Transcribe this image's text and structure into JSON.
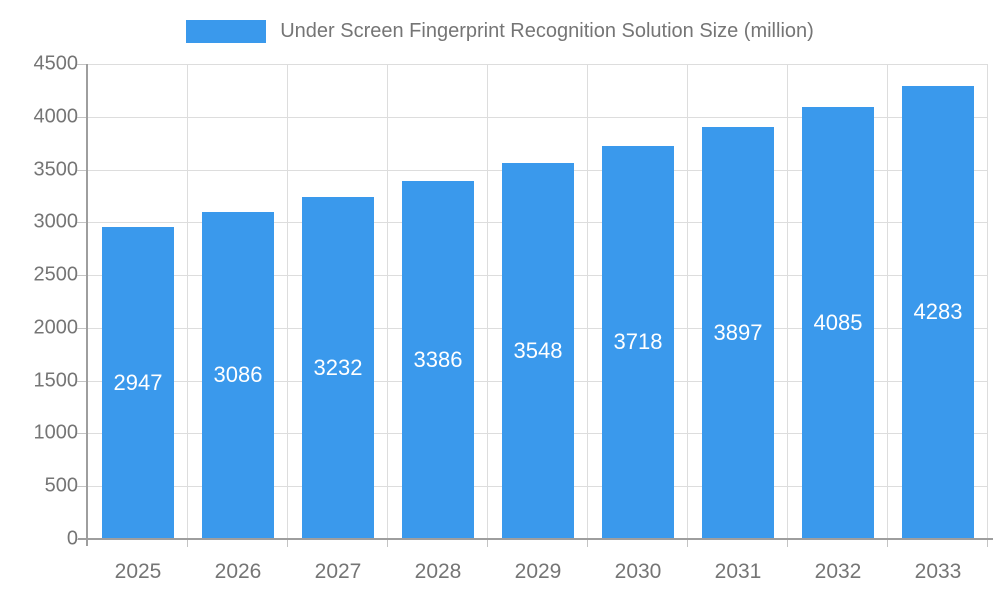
{
  "chart_data": {
    "type": "bar",
    "title": "Under Screen Fingerprint Recognition Solution Size (million)",
    "legend": {
      "position": "top",
      "label": "Under Screen Fingerprint Recognition Solution Size (million)"
    },
    "categories": [
      "2025",
      "2026",
      "2027",
      "2028",
      "2029",
      "2030",
      "2031",
      "2032",
      "2033"
    ],
    "series": [
      {
        "name": "Under Screen Fingerprint Recognition Solution Size (million)",
        "values": [
          2947,
          3086,
          3232,
          3386,
          3548,
          3718,
          3897,
          4085,
          4283
        ]
      }
    ],
    "value_labels_shown": true,
    "xlabel": "",
    "ylabel": "",
    "ylim": [
      0,
      4500
    ],
    "yticks": [
      0,
      500,
      1000,
      1500,
      2000,
      2500,
      3000,
      3500,
      4000,
      4500
    ],
    "grid": true,
    "colors": {
      "bar": "#3a99ec",
      "gridline": "#dddddd",
      "axis_line": "#9e9e9e",
      "tick": "#c4c4c4",
      "axis_text": "#757575",
      "bar_value_text": "#ffffff",
      "background": "#ffffff"
    }
  }
}
